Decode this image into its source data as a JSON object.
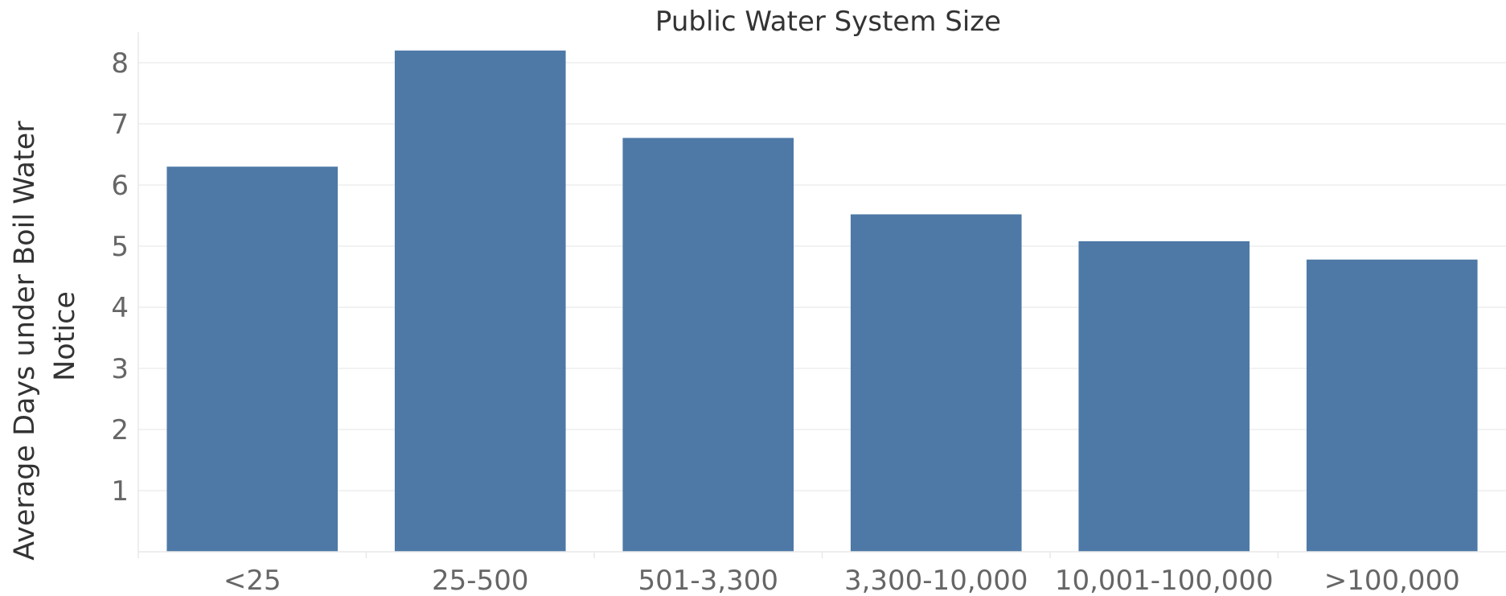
{
  "chart_data": {
    "type": "bar",
    "title": "Public Water System Size",
    "xlabel": "",
    "ylabel_lines": [
      "Average Days under Boil Water",
      "Notice"
    ],
    "categories": [
      "<25",
      "25-500",
      "501-3,300",
      "3,300-10,000",
      "10,001-100,000",
      ">100,000"
    ],
    "values": [
      6.3,
      8.2,
      6.77,
      5.52,
      5.08,
      4.78
    ],
    "ylim": [
      0,
      8.5
    ],
    "yticks": [
      1,
      2,
      3,
      4,
      5,
      6,
      7,
      8
    ],
    "grid": true,
    "bar_color": "#4e79a7"
  }
}
